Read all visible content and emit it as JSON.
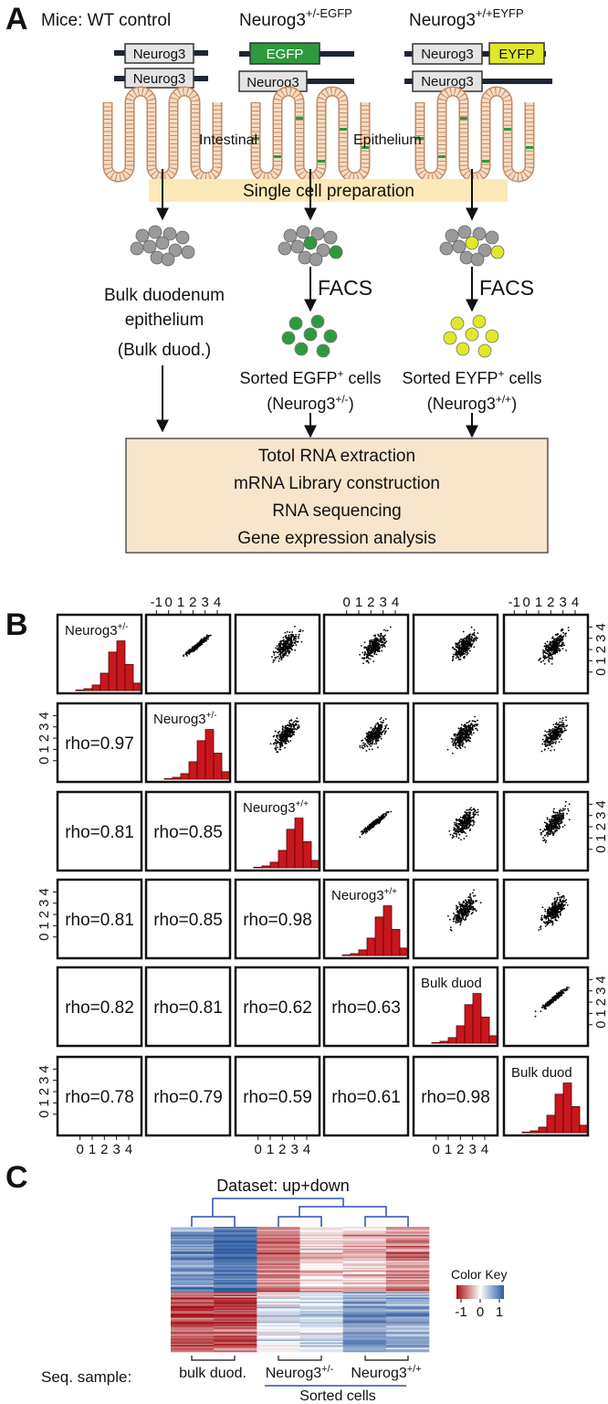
{
  "panel_a": {
    "label": "A",
    "mice_label": "Mice: WT control",
    "strains": [
      {
        "name": "Neurog3",
        "sup": "+/-EGFP"
      },
      {
        "name": "Neurog3",
        "sup": "+/+EYFP"
      }
    ],
    "genes": {
      "neurog3": "Neurog3",
      "egfp": "EGFP",
      "eyfp": "EYFP"
    },
    "tissue": [
      "Intestinal",
      "Epithelium"
    ],
    "preparation": "Single cell preparation",
    "sorting": "FACS",
    "bulk": [
      "Bulk duodenum",
      "epithelium",
      "(Bulk duod.)"
    ],
    "sorted": [
      {
        "text": "Sorted EGFP",
        "sup": "+",
        "suffix": " cells",
        "genotype": "(Neurog3",
        "genotype_sup": "+/-",
        "close": ")"
      },
      {
        "text": "Sorted EYFP",
        "sup": "+",
        "suffix": " cells",
        "genotype": "(Neurog3",
        "genotype_sup": "+/+",
        "close": ")"
      }
    ],
    "analysis": [
      "Totol RNA extraction",
      "mRNA Library construction",
      "RNA sequencing",
      "Gene expression analysis"
    ]
  },
  "panel_b": {
    "label": "B",
    "samples": [
      {
        "name": "Neurog3",
        "sup": "+/-"
      },
      {
        "name": "Neurog3",
        "sup": "+/-"
      },
      {
        "name": "Neurog3",
        "sup": "+/+"
      },
      {
        "name": "Neurog3",
        "sup": "+/+"
      },
      {
        "name": "Bulk duod"
      },
      {
        "name": "Bulk duod"
      }
    ],
    "correlations": [
      [
        "rho=0.97"
      ],
      [
        "rho=0.81",
        "rho=0.85"
      ],
      [
        "rho=0.81",
        "rho=0.85",
        "rho=0.98"
      ],
      [
        "rho=0.82",
        "rho=0.81",
        "rho=0.62",
        "rho=0.63"
      ],
      [
        "rho=0.78",
        "rho=0.79",
        "rho=0.59",
        "rho=0.61",
        "rho=0.98"
      ]
    ],
    "ticks_wide": [
      -1,
      0,
      1,
      2,
      3,
      4
    ],
    "ticks": [
      0,
      1,
      2,
      3,
      4
    ]
  },
  "panel_c": {
    "label": "C",
    "title": "Dataset: up+down",
    "color_key": {
      "title": "Color Key",
      "ticks": [
        -1,
        0,
        1
      ]
    },
    "row_label": "Seq. sample:",
    "samples": [
      {
        "name": "bulk duod."
      },
      {
        "name": "Neurog3",
        "sup": "+/-"
      },
      {
        "name": "Neurog3",
        "sup": "+/+"
      }
    ],
    "group_label": "Sorted cells"
  }
}
